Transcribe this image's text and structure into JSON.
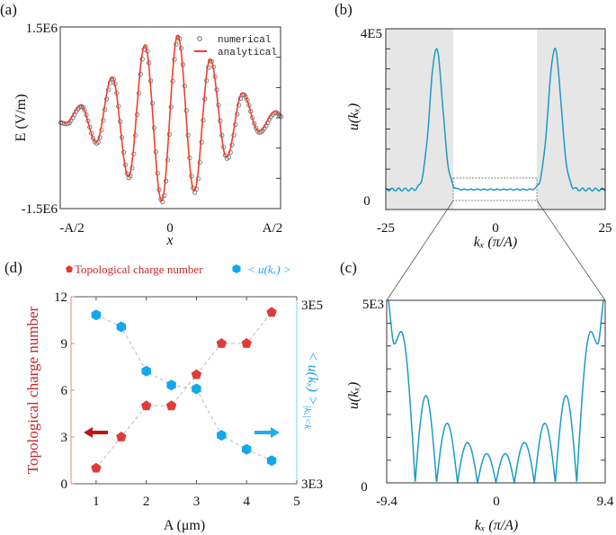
{
  "colors": {
    "curve_a": "#f0402a",
    "numerical": "#6a6a6a",
    "curve_bc": "#1a9bc4",
    "shade": "#e6e6e6",
    "red": "#e03a3a",
    "blue": "#12a8ee",
    "red_text": "#c8262b",
    "blue_text": "#1aa3e8"
  },
  "chart_data": [
    {
      "panel": "(a)",
      "type": "line",
      "xlabel": "x",
      "ylabel": "E (V/m)",
      "xticks": [
        "-A/2",
        "0",
        "A/2"
      ],
      "yticks": [
        "1.5E6",
        "-1.5E6"
      ],
      "xlim_A": [
        -0.5,
        0.5
      ],
      "ylim": [
        -1500000,
        1500000
      ],
      "legend": {
        "placement": "top-right",
        "entries": [
          "numerical",
          "analytical"
        ]
      },
      "series": [
        {
          "name": "analytical",
          "style": "line",
          "extrema_x_over_A": [
            -0.5,
            -0.473,
            -0.407,
            -0.337,
            -0.265,
            -0.19,
            -0.116,
            -0.04,
            0.033,
            0.108,
            0.18,
            0.255,
            0.327,
            0.401,
            0.477,
            0.5
          ],
          "extrema_E": [
            -60000,
            -80000,
            210000,
            -400000,
            670000,
            -970000,
            1200000,
            -1370000,
            1360000,
            -1210000,
            970000,
            -650000,
            410000,
            -220000,
            110000,
            40000
          ]
        },
        {
          "name": "numerical",
          "style": "open-circles",
          "follows": "analytical"
        }
      ]
    },
    {
      "panel": "(b)",
      "type": "line",
      "xlabel": "kₓ (π/A)",
      "ylabel": "u(kₓ)",
      "xticks": [
        "-25",
        "0",
        "25"
      ],
      "yticks": [
        "4E5",
        "0"
      ],
      "xlim": [
        -25,
        25
      ],
      "ylim": [
        -22000,
        430000
      ],
      "shaded_region": "|kx| > 9.4",
      "peak_kx": [
        -13.5,
        13.5
      ],
      "peak_u": 380000,
      "baseline_u": 28000,
      "zoom_box": {
        "kx": [
          -9.4,
          9.4
        ],
        "u": [
          0,
          54000
        ]
      }
    },
    {
      "panel": "(c)",
      "type": "line",
      "xlabel": "kₓ (π/A)",
      "ylabel": "u(kₓ)",
      "xticks": [
        "-9.4",
        "0",
        "9.4"
      ],
      "yticks": [
        "5E3",
        "0"
      ],
      "xlim": [
        -9.4,
        9.4
      ],
      "ylim": [
        0,
        5000
      ],
      "points_kx": [
        -9.4,
        -8.75,
        -8.16,
        -6.95,
        -6.03,
        -5.11,
        -4.2,
        -3.31,
        -2.45,
        -1.58,
        -0.8,
        0,
        0.8,
        1.58,
        2.45,
        3.31,
        4.2,
        5.11,
        6.03,
        6.95,
        8.16,
        8.75,
        9.4
      ],
      "points_u": [
        5200,
        3806,
        4143,
        0,
        2389,
        0,
        1631,
        0,
        1104,
        0,
        799,
        0,
        799,
        0,
        1104,
        0,
        1631,
        0,
        2389,
        0,
        4143,
        3806,
        5200
      ]
    },
    {
      "panel": "(d)",
      "type": "scatter",
      "xlabel": "A (μm)",
      "ylabel_left": "Topological charge number",
      "ylabel_right": "< u(kₓ) >",
      "ylabel_right_sub": "|kₓ|<k",
      "xticks": [
        "1",
        "2",
        "3",
        "4",
        "5"
      ],
      "yticks_left": [
        "0",
        "3",
        "6",
        "9",
        "12"
      ],
      "yticks_right": [
        "3E5",
        "3E3"
      ],
      "xlim": [
        0.5,
        5
      ],
      "ylim_left": [
        0,
        12
      ],
      "ylim_right": [
        3000,
        300000
      ],
      "right_scale": "log",
      "legend": {
        "placement": "top",
        "entries": [
          "Topological charge number",
          "< u(kₓ) >"
        ]
      },
      "x": [
        1,
        1.5,
        2,
        2.5,
        3,
        3.5,
        4,
        4.5
      ],
      "series": [
        {
          "name": "Topological charge number",
          "axis": "left",
          "marker": "pentagon",
          "values": [
            1,
            3,
            5,
            5,
            7,
            9,
            9,
            11
          ]
        },
        {
          "name": "< u(kₓ) >",
          "axis": "right",
          "marker": "hexagon",
          "values": [
            192000,
            143000,
            48000,
            34000,
            31000,
            9900,
            7000,
            5300
          ]
        }
      ]
    }
  ]
}
